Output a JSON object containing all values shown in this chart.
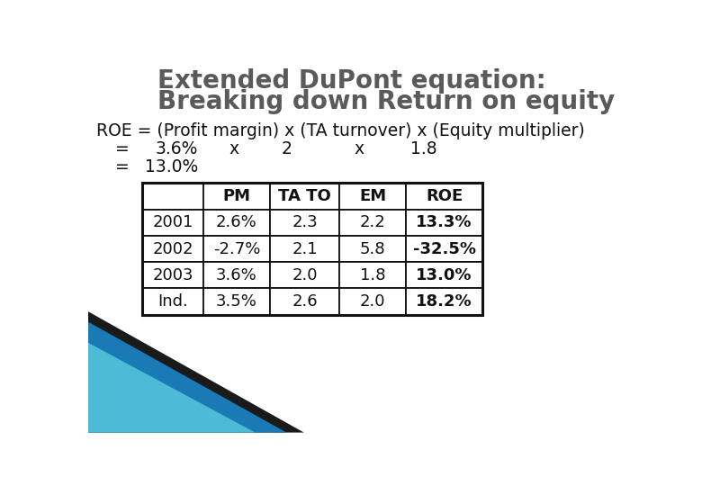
{
  "title_line1": "Extended DuPont equation:",
  "title_line2": "Breaking down Return on equity",
  "title_color": "#5a5a5a",
  "title_fontsize": 20,
  "eq_fontsize": 13.5,
  "table_headers": [
    "",
    "PM",
    "TA TO",
    "EM",
    "ROE"
  ],
  "table_rows": [
    [
      "2001",
      "2.6%",
      "2.3",
      "2.2",
      "13.3%"
    ],
    [
      "2002",
      "-2.7%",
      "2.1",
      "5.8",
      "-32.5%"
    ],
    [
      "2003",
      "3.6%",
      "2.0",
      "1.8",
      "13.0%"
    ],
    [
      "Ind.",
      "3.5%",
      "2.6",
      "2.0",
      "18.2%"
    ]
  ],
  "table_fontsize": 13,
  "bg_color": "#ffffff",
  "table_border_color": "#111111",
  "decoration_dark": "#1a1a1a",
  "decoration_blue": "#1a7ab5",
  "decoration_light": "#4dbbd5"
}
